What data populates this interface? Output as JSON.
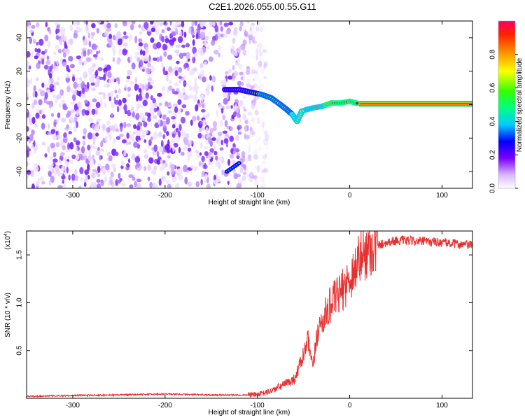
{
  "page_title": "C2E1.2026.055.00.55.G11",
  "chart_data": [
    {
      "type": "heatmap",
      "title": "C2E1.2026.055.00.55.G11",
      "xlabel": "Height of straight line (km)",
      "ylabel": "Frequency (Hz)",
      "xlim": [
        -350,
        133
      ],
      "ylim": [
        -50,
        50
      ],
      "x_ticks": [
        "-300",
        "-200",
        "-100",
        "0",
        "100"
      ],
      "y_ticks": [
        "-40",
        "-20",
        "0",
        "20",
        "40"
      ],
      "noise_region_x": [
        -350,
        -95
      ],
      "signal_track": {
        "x": [
          -135,
          -120,
          -95,
          -85,
          -75,
          -68,
          -62,
          -57,
          -52,
          -47,
          -40,
          -30,
          -20,
          -10,
          0,
          10,
          133
        ],
        "y": [
          9,
          9,
          6,
          4,
          0,
          -3,
          -6,
          -10,
          -4,
          -3,
          -2,
          -1,
          1,
          1,
          2,
          0.5,
          0.5
        ]
      },
      "extra_features": [
        {
          "x": [
            -133,
            -120
          ],
          "y": [
            -40,
            -35
          ]
        }
      ],
      "colorbar": {
        "label": "Normalized spectral amplitude",
        "range": [
          0,
          1
        ],
        "ticks": [
          "0.0",
          "0.2",
          "0.4",
          "0.6",
          "0.8"
        ]
      },
      "grid": false
    },
    {
      "type": "line",
      "xlabel": "Height of straight line (km)",
      "ylabel": "SNR (10 * v/v)",
      "scale_label": "(x10",
      "scale_exponent": "4",
      "xlim": [
        -350,
        133
      ],
      "ylim": [
        0,
        17500
      ],
      "x_ticks": [
        "-300",
        "-200",
        "-100",
        "0",
        "100"
      ],
      "y_ticks": [
        "0.5",
        "1.0",
        "1.5"
      ],
      "color": "#e83030",
      "series": [
        {
          "x": [
            -350,
            -300,
            -250,
            -200,
            -150,
            -110,
            -100,
            -90,
            -80,
            -70,
            -60,
            -50,
            -45,
            -40,
            -35,
            -30,
            -25,
            -20,
            -10,
            0,
            10,
            20,
            30,
            40,
            50,
            60,
            80,
            100,
            120,
            133
          ],
          "y": [
            200,
            300,
            350,
            450,
            350,
            350,
            400,
            600,
            1000,
            1500,
            2000,
            4500,
            6000,
            3000,
            7000,
            8000,
            9000,
            10000,
            11000,
            12500,
            14500,
            15500,
            16000,
            16300,
            16500,
            16500,
            16400,
            16300,
            16100,
            16000
          ]
        }
      ],
      "grid": false
    }
  ]
}
